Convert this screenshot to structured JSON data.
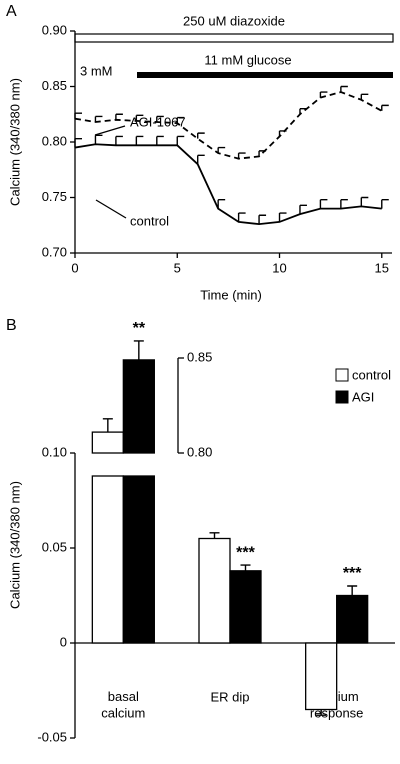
{
  "chart_data": [
    {
      "type": "line",
      "panel": "A",
      "xlabel": "Time (min)",
      "ylabel": "Calcium (340/380 nm)",
      "annotations": [
        "250 uM diazoxide",
        "3 mM",
        "11 mM glucose"
      ],
      "x": [
        0,
        1,
        2,
        3,
        4,
        5,
        6,
        7,
        8,
        9,
        10,
        11,
        12,
        13,
        14,
        15
      ],
      "series": [
        {
          "name": "AGI-1067",
          "color": "#000000",
          "dash": true,
          "values": [
            0.821,
            0.818,
            0.82,
            0.819,
            0.818,
            0.817,
            0.803,
            0.79,
            0.785,
            0.787,
            0.805,
            0.825,
            0.84,
            0.845,
            0.838,
            0.828
          ],
          "errors": [
            0.005,
            0.005,
            0.005,
            0.005,
            0.005,
            0.005,
            0.005,
            0.005,
            0.005,
            0.005,
            0.005,
            0.005,
            0.005,
            0.005,
            0.005,
            0.005
          ]
        },
        {
          "name": "control",
          "color": "#000000",
          "dash": false,
          "values": [
            0.795,
            0.798,
            0.797,
            0.797,
            0.797,
            0.797,
            0.78,
            0.74,
            0.728,
            0.726,
            0.728,
            0.735,
            0.74,
            0.74,
            0.742,
            0.74
          ],
          "errors": [
            0.008,
            0.008,
            0.008,
            0.008,
            0.008,
            0.008,
            0.008,
            0.008,
            0.008,
            0.008,
            0.008,
            0.008,
            0.008,
            0.008,
            0.008,
            0.008
          ]
        }
      ],
      "xlim": [
        0,
        15.5
      ],
      "xticks": [
        0,
        5,
        10,
        15
      ],
      "ylim": [
        0.7,
        0.9
      ],
      "yticks": [
        {
          "value": 0.7,
          "label": "0.70"
        },
        0.75,
        {
          "value": 0.8,
          "label": "0.80"
        },
        0.85,
        {
          "value": 0.9,
          "label": "0.90"
        }
      ]
    },
    {
      "type": "bar",
      "panel": "B",
      "ylabel": "Calcium (340/380 nm)",
      "categories": [
        "basal\ncalcium",
        "ER dip",
        "calcium\nresponse"
      ],
      "series": [
        {
          "name": "control",
          "color": "#ffffff",
          "values": [
            0.811,
            0.055,
            -0.035
          ],
          "errors": [
            0.007,
            0.003,
            0.003
          ]
        },
        {
          "name": "AGI",
          "color": "#000000",
          "values": [
            0.849,
            0.038,
            0.025
          ],
          "errors": [
            0.01,
            0.003,
            0.005
          ],
          "significance": [
            "**",
            "***",
            "***"
          ]
        }
      ],
      "ylim": [
        -0.05,
        0.1
      ],
      "yticks": [
        -0.05,
        0,
        0.05,
        {
          "value": 0.1,
          "label": "0.10"
        }
      ],
      "y2lim": [
        0.8,
        0.85
      ],
      "y2ticks": [
        {
          "value": 0.8,
          "label": "0.80"
        },
        0.85
      ]
    }
  ]
}
